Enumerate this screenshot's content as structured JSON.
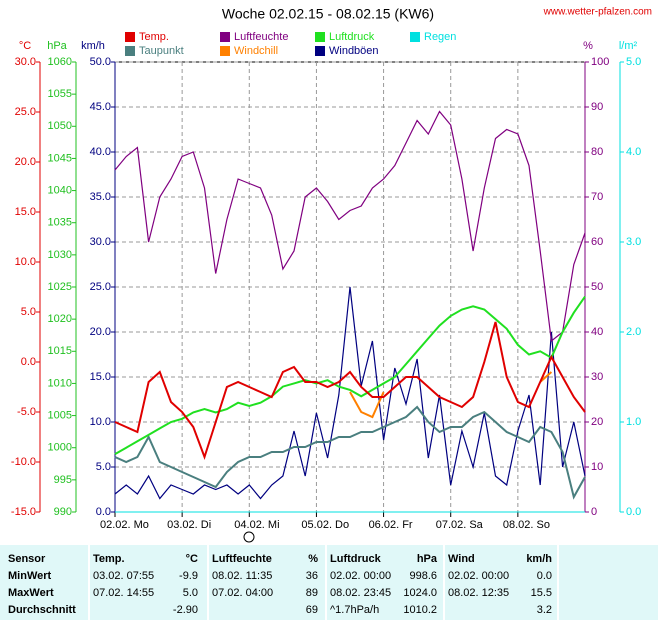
{
  "chart_data": {
    "type": "line",
    "title": "Woche 02.02.15 - 08.02.15 (KW6)",
    "source": "www.wetter-pfalzen.com",
    "grid": true,
    "categories": [
      "02.02. Mo",
      null,
      null,
      null,
      null,
      null,
      "03.02. Di",
      null,
      null,
      null,
      null,
      null,
      "04.02. Mi",
      null,
      null,
      null,
      null,
      null,
      "05.02. Do",
      null,
      null,
      null,
      null,
      null,
      "06.02. Fr",
      null,
      null,
      null,
      null,
      null,
      "07.02. Sa",
      null,
      null,
      null,
      null,
      null,
      "08.02. So",
      null,
      null,
      null,
      null,
      null,
      null
    ],
    "axes": [
      {
        "label": "°C",
        "color": "#e00000",
        "lim": [
          -15,
          30
        ],
        "ticks": [
          {
            "value": -15,
            "label": "-15.0"
          },
          {
            "value": -10,
            "label": "-10.0"
          },
          {
            "value": -5,
            "label": "-5.0"
          },
          {
            "value": 0,
            "label": "0.0"
          },
          {
            "value": 5,
            "label": "5.0"
          },
          {
            "value": 10,
            "label": "10.0"
          },
          {
            "value": 15,
            "label": "15.0"
          },
          {
            "value": 20,
            "label": "20.0"
          },
          {
            "value": 25,
            "label": "25.0"
          },
          {
            "value": 30,
            "label": "30.0"
          }
        ]
      },
      {
        "label": "hPa",
        "color": "#20c020",
        "lim": [
          990,
          1060
        ],
        "ticks": [
          990,
          995,
          1000,
          1005,
          1010,
          1015,
          1020,
          1025,
          1030,
          1035,
          1040,
          1045,
          1050,
          1055,
          1060
        ]
      },
      {
        "label": "km/h",
        "color": "#000080",
        "lim": [
          0,
          50
        ],
        "ticks": [
          {
            "value": 0,
            "label": "0.0"
          },
          {
            "value": 5,
            "label": "5.0"
          },
          {
            "value": 10,
            "label": "10.0"
          },
          {
            "value": 15,
            "label": "15.0"
          },
          {
            "value": 20,
            "label": "20.0"
          },
          {
            "value": 25,
            "label": "25.0"
          },
          {
            "value": 30,
            "label": "30.0"
          },
          {
            "value": 35,
            "label": "35.0"
          },
          {
            "value": 40,
            "label": "40.0"
          },
          {
            "value": 45,
            "label": "45.0"
          },
          {
            "value": 50,
            "label": "50.0"
          }
        ]
      },
      {
        "label": "%",
        "color": "#800080",
        "lim": [
          0,
          100
        ],
        "ticks": [
          0,
          10,
          20,
          30,
          40,
          50,
          60,
          70,
          80,
          90,
          100
        ]
      },
      {
        "label": "l/m²",
        "color": "#00e0e0",
        "lim": [
          0,
          5
        ],
        "ticks": [
          {
            "value": 0,
            "label": "0.0"
          },
          {
            "value": 1,
            "label": "1.0"
          },
          {
            "value": 2,
            "label": "2.0"
          },
          {
            "value": 3,
            "label": "3.0"
          },
          {
            "value": 4,
            "label": "4.0"
          },
          {
            "value": 5,
            "label": "5.0"
          }
        ]
      }
    ],
    "series": [
      {
        "name": "Temp.",
        "color": "#e00000",
        "axis": 0,
        "values": [
          -6,
          -6.5,
          -7,
          -2,
          -1,
          -4,
          -5,
          -6.5,
          -9.5,
          -6,
          -2.5,
          -2,
          -2.5,
          -3,
          -3.5,
          -1,
          -0.5,
          -2,
          -2,
          -2.5,
          -2,
          -1,
          -2.5,
          -3.5,
          -3.5,
          -2.5,
          -1.5,
          -1.5,
          -2.5,
          -3.5,
          -4,
          -4.5,
          -3.5,
          0,
          4,
          -1.5,
          -4,
          -4.5,
          -2,
          0.5,
          -1.5,
          -3.5,
          -5
        ]
      },
      {
        "name": "Luftfeuchte",
        "color": "#800080",
        "axis": 3,
        "values": [
          76,
          79,
          81,
          60,
          70,
          74,
          79,
          80,
          72,
          53,
          65,
          74,
          73,
          72,
          66,
          54,
          58,
          70,
          72,
          69,
          65,
          67,
          68,
          72,
          74,
          77,
          82,
          87,
          84,
          89,
          86,
          74,
          58,
          72,
          83,
          85,
          84,
          77,
          58,
          38,
          40,
          55,
          62
        ]
      },
      {
        "name": "Luftdruck",
        "color": "#20e020",
        "axis": 1,
        "values": [
          999,
          1000,
          1001,
          1002,
          1003,
          1004,
          1004.5,
          1005.5,
          1006,
          1005.5,
          1006,
          1007,
          1006.5,
          1007,
          1008,
          1009.5,
          1010,
          1010.5,
          1010,
          1010.5,
          1009.5,
          1009,
          1008,
          1009,
          1010,
          1011,
          1013,
          1015,
          1017,
          1019,
          1020.5,
          1021.5,
          1022,
          1021.5,
          1020,
          1018.5,
          1016,
          1014.5,
          1015,
          1014,
          1018,
          1021,
          1023.5
        ]
      },
      {
        "name": "Regen",
        "color": "#00e0e0",
        "axis": 4,
        "values": [
          0,
          0,
          0,
          0,
          0,
          0,
          0,
          0,
          0,
          0,
          0,
          0,
          0,
          0,
          0,
          0,
          0,
          0,
          0,
          0,
          0,
          0,
          0,
          0,
          0,
          0,
          0,
          0,
          0,
          0,
          0,
          0,
          0,
          0,
          0,
          0,
          0,
          0,
          0,
          0,
          0,
          0,
          0
        ]
      },
      {
        "name": "Taupunkt",
        "color": "#4a7f7f",
        "axis": 0,
        "values": [
          -9.5,
          -10,
          -9.5,
          -7.5,
          -10,
          -10.5,
          -11,
          -11.5,
          -12,
          -12.5,
          -11,
          -10,
          -9.5,
          -9.5,
          -9,
          -9,
          -8.5,
          -8.5,
          -8,
          -8,
          -7.5,
          -7.5,
          -7,
          -7,
          -6.5,
          -6,
          -5.5,
          -4.5,
          -6,
          -7,
          -6.5,
          -6.5,
          -5.5,
          -5,
          -6,
          -7,
          -7.5,
          -8,
          -6.5,
          -7,
          -9,
          -13.5,
          -11.5
        ]
      },
      {
        "name": "Windchill",
        "color": "#ff8000",
        "axis": 0,
        "values": [
          null,
          null,
          null,
          null,
          null,
          null,
          null,
          null,
          null,
          null,
          null,
          null,
          null,
          null,
          null,
          null,
          null,
          null,
          null,
          null,
          null,
          -3,
          -5,
          -5.5,
          -3,
          null,
          null,
          null,
          null,
          null,
          null,
          null,
          null,
          null,
          null,
          null,
          null,
          null,
          -2,
          -1,
          null,
          null,
          null
        ]
      },
      {
        "name": "Windböen",
        "color": "#000080",
        "axis": 2,
        "values": [
          2,
          3,
          2,
          4,
          1.5,
          3,
          2.5,
          2,
          3,
          2.5,
          3,
          2,
          3,
          1.5,
          3,
          4,
          9,
          4,
          11,
          6,
          13,
          25,
          14,
          19,
          8,
          16,
          12,
          17,
          6,
          13,
          3,
          9,
          5,
          11,
          4,
          3,
          9,
          13,
          3,
          20,
          5,
          10,
          4
        ]
      }
    ]
  },
  "table": {
    "headers": [
      "Sensor",
      "Temp.",
      "°C",
      "Luftfeuchte",
      "%",
      "Luftdruck",
      "hPa",
      "Wind",
      "km/h"
    ],
    "rows": [
      [
        "MinWert",
        "03.02.  07:55",
        "-9.9",
        "08.02.  11:35",
        "36",
        "02.02.  00:00",
        "998.6",
        "02.02.  00:00",
        "0.0"
      ],
      [
        "MaxWert",
        "07.02.  14:55",
        "5.0",
        "07.02.  04:00",
        "89",
        "08.02.  23:45",
        "1024.0",
        "08.02.  12:35",
        "15.5"
      ],
      [
        "Durchschnitt",
        null,
        "-2.90",
        null,
        "69",
        "^1.7hPa/h",
        "1010.2",
        null,
        "3.2"
      ]
    ]
  }
}
